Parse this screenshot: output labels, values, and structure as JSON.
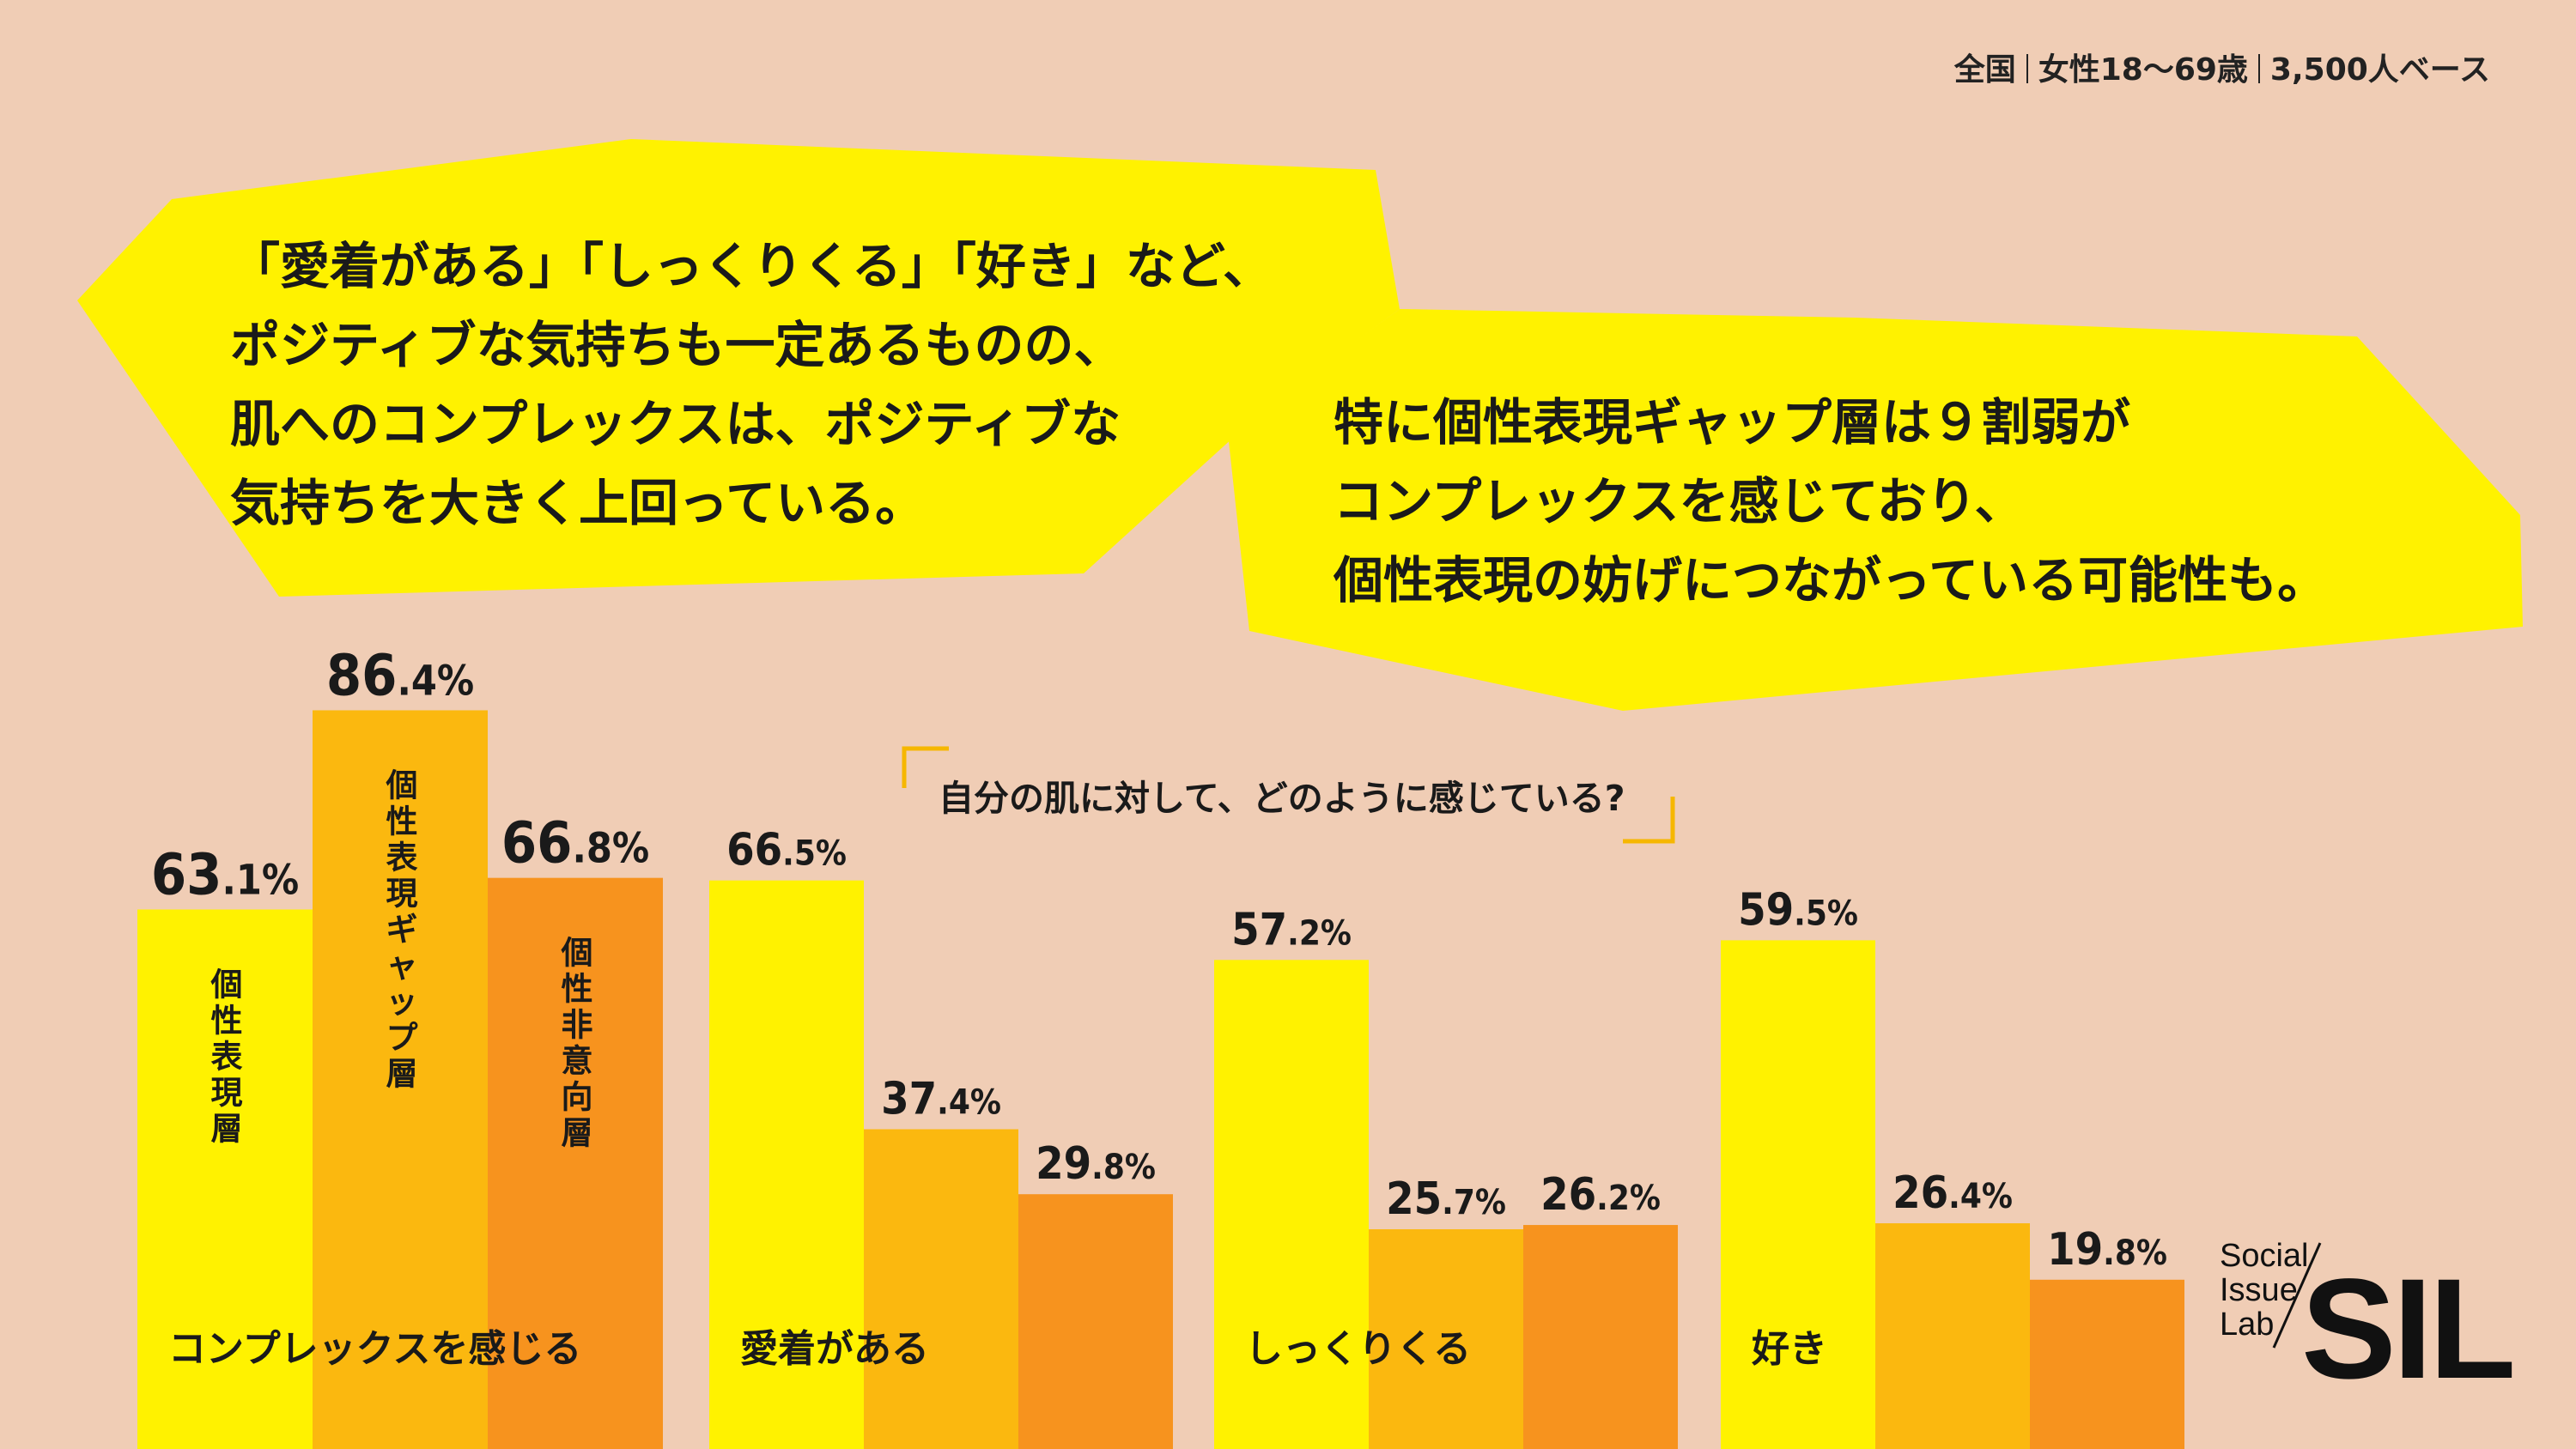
{
  "header": {
    "region": "全国",
    "target": "女性18〜69歳",
    "base": "3,500人ベース"
  },
  "bubble_left": {
    "lines": [
      "「愛着がある」「しっくりくる」「好き」など、",
      "ポジティブな気持ちも一定あるものの、",
      "肌へのコンプレックスは、ポジティブな",
      "気持ちを大きく上回っている。"
    ],
    "color": "#fff200"
  },
  "bubble_right": {
    "lines": [
      "特に個性表現ギャップ層は９割弱が",
      "コンプレックスを感じており、",
      "個性表現の妨げにつながっている可能性も。"
    ],
    "color": "#fff200"
  },
  "question": "自分の肌に対して、どのように感じている?",
  "logo": {
    "small_lines": [
      "Social",
      "Issue",
      "Lab"
    ],
    "big": "SIL"
  },
  "colors": {
    "background": "#f0cdb5",
    "series1": "#fff200",
    "series2": "#fbb80f",
    "series3": "#f7931e",
    "bubble": "#fff200",
    "bracket": "#f6b700"
  },
  "chart_data": {
    "type": "bar",
    "categories": [
      "コンプレックスを感じる",
      "愛着がある",
      "しっくりくる",
      "好き"
    ],
    "series": [
      {
        "name": "個性表現層",
        "values": [
          63.1,
          66.5,
          57.2,
          59.5
        ]
      },
      {
        "name": "個性表現ギャップ層",
        "values": [
          86.4,
          37.4,
          25.7,
          26.4
        ]
      },
      {
        "name": "個性非意向層",
        "values": [
          66.8,
          29.8,
          26.2,
          19.8
        ]
      }
    ],
    "value_suffix": "%",
    "ylim": [
      0,
      100
    ],
    "grid": false,
    "legend": "series names written inside the bars of the first group",
    "title": "",
    "xlabel": "",
    "ylabel": ""
  }
}
